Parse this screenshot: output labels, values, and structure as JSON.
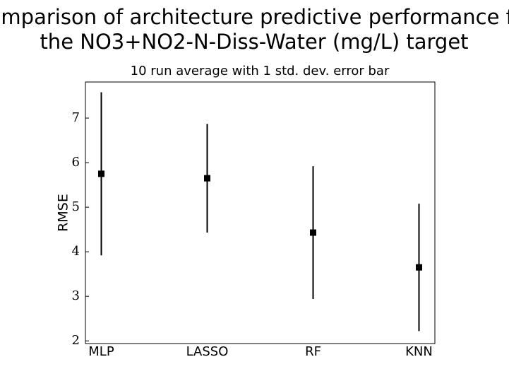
{
  "chart_data": {
    "type": "errorbar",
    "title": [
      "Comparison of architecture predictive performance for",
      "the NO3+NO2-N-Diss-Water (mg/L) target"
    ],
    "subtitle": "10 run average with 1 std. dev. error bar",
    "y_label": "RMSE",
    "categories": [
      "MLP",
      "LASSO",
      "RF",
      "KNN"
    ],
    "values": [
      5.75,
      5.65,
      4.43,
      3.65
    ],
    "errors": [
      1.83,
      1.22,
      1.49,
      1.43
    ],
    "color": "#000000",
    "ylim": [
      1.94,
      7.81
    ],
    "yticks": [
      2,
      3,
      4,
      5,
      6,
      7
    ],
    "grid": false
  }
}
